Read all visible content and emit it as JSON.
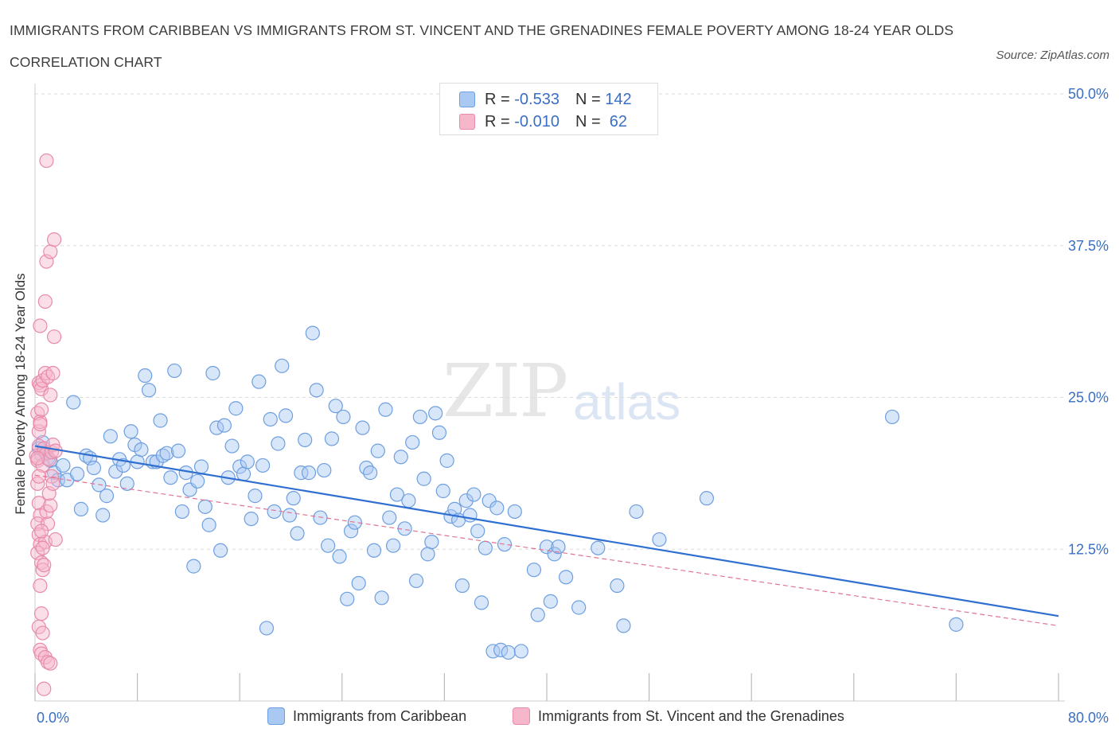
{
  "title": "IMMIGRANTS FROM CARIBBEAN VS IMMIGRANTS FROM ST. VINCENT AND THE GRENADINES FEMALE POVERTY AMONG 18-24 YEAR OLDS CORRELATION CHART",
  "source": "Source: ZipAtlas.com",
  "watermark": {
    "zip": "ZIP",
    "atlas": "atlas"
  },
  "colors": {
    "blue_fill": "#a9c8f2",
    "blue_stroke": "#6e9fe0",
    "blue_line": "#2f6fd0",
    "pink_fill": "#f6b7cb",
    "pink_stroke": "#e88aaa",
    "pink_line": "#e07494",
    "tick_label": "#3a6fc4",
    "grid": "#dddddd"
  },
  "legend": {
    "rows": [
      {
        "r_label": "R =",
        "r_value": "-0.533",
        "n_label": "N =",
        "n_value": "142"
      },
      {
        "r_label": "R =",
        "r_value": "-0.010",
        "n_label": "N =",
        "n_value": " 62"
      }
    ]
  },
  "chart_data": {
    "type": "scatter",
    "title": "IMMIGRANTS FROM CARIBBEAN VS IMMIGRANTS FROM ST. VINCENT AND THE GRENADINES FEMALE POVERTY AMONG 18-24 YEAR OLDS CORRELATION CHART",
    "xlabel": "",
    "ylabel": "Female Poverty Among 18-24 Year Olds",
    "xlim": [
      0,
      80
    ],
    "ylim": [
      0,
      50
    ],
    "x_tick_labels": [
      "0.0%",
      "80.0%"
    ],
    "y_ticks": [
      12.5,
      25.0,
      37.5,
      50.0
    ],
    "y_tick_labels": [
      "12.5%",
      "25.0%",
      "37.5%",
      "50.0%"
    ],
    "grid": true,
    "legend_position": "top-center",
    "series": [
      {
        "name": "Immigrants from Caribbean",
        "color": "#6e9fe0",
        "trend": {
          "x": [
            0,
            80
          ],
          "y": [
            21.0,
            7.0
          ]
        },
        "points": [
          [
            0.3,
            20.8
          ],
          [
            0.5,
            20.3
          ],
          [
            0.6,
            21.3
          ],
          [
            0.8,
            20.5
          ],
          [
            1.0,
            20.0
          ],
          [
            1.2,
            19.8
          ],
          [
            1.5,
            18.8
          ],
          [
            1.8,
            18.2
          ],
          [
            2.2,
            19.4
          ],
          [
            2.5,
            18.2
          ],
          [
            3.0,
            24.6
          ],
          [
            3.3,
            18.7
          ],
          [
            3.6,
            15.8
          ],
          [
            4.0,
            20.2
          ],
          [
            4.3,
            20.0
          ],
          [
            4.6,
            19.2
          ],
          [
            5.0,
            17.8
          ],
          [
            5.3,
            15.3
          ],
          [
            5.6,
            16.9
          ],
          [
            5.9,
            21.8
          ],
          [
            6.3,
            18.9
          ],
          [
            6.6,
            19.9
          ],
          [
            6.9,
            19.4
          ],
          [
            7.2,
            17.9
          ],
          [
            7.5,
            22.2
          ],
          [
            7.8,
            21.1
          ],
          [
            8.0,
            19.7
          ],
          [
            8.3,
            20.7
          ],
          [
            8.6,
            26.8
          ],
          [
            8.9,
            25.6
          ],
          [
            9.2,
            19.7
          ],
          [
            9.5,
            19.7
          ],
          [
            9.8,
            23.1
          ],
          [
            10.0,
            20.2
          ],
          [
            10.3,
            20.4
          ],
          [
            10.6,
            18.4
          ],
          [
            10.9,
            27.2
          ],
          [
            11.2,
            20.6
          ],
          [
            11.5,
            15.6
          ],
          [
            11.8,
            18.8
          ],
          [
            12.1,
            17.4
          ],
          [
            12.4,
            11.1
          ],
          [
            12.7,
            18.1
          ],
          [
            13.0,
            19.3
          ],
          [
            13.3,
            16.0
          ],
          [
            13.6,
            14.5
          ],
          [
            13.9,
            27.0
          ],
          [
            14.2,
            22.5
          ],
          [
            14.5,
            12.4
          ],
          [
            14.8,
            22.7
          ],
          [
            15.1,
            18.4
          ],
          [
            15.4,
            21.0
          ],
          [
            15.7,
            24.1
          ],
          [
            16.0,
            19.3
          ],
          [
            16.3,
            18.7
          ],
          [
            16.6,
            19.7
          ],
          [
            16.9,
            15.0
          ],
          [
            17.2,
            16.9
          ],
          [
            17.5,
            26.3
          ],
          [
            17.8,
            19.4
          ],
          [
            18.1,
            6.0
          ],
          [
            18.4,
            23.2
          ],
          [
            18.7,
            15.6
          ],
          [
            19.0,
            21.2
          ],
          [
            19.3,
            27.6
          ],
          [
            19.6,
            23.5
          ],
          [
            19.9,
            15.3
          ],
          [
            20.2,
            16.7
          ],
          [
            20.5,
            13.8
          ],
          [
            20.8,
            18.8
          ],
          [
            21.1,
            21.5
          ],
          [
            21.4,
            18.8
          ],
          [
            21.7,
            30.3
          ],
          [
            22.0,
            25.6
          ],
          [
            22.3,
            15.1
          ],
          [
            22.6,
            19.0
          ],
          [
            22.9,
            12.8
          ],
          [
            23.2,
            21.6
          ],
          [
            23.5,
            24.3
          ],
          [
            23.8,
            11.9
          ],
          [
            24.1,
            23.4
          ],
          [
            24.4,
            8.4
          ],
          [
            24.7,
            14.0
          ],
          [
            25.0,
            14.7
          ],
          [
            25.3,
            9.7
          ],
          [
            25.6,
            22.5
          ],
          [
            25.9,
            19.2
          ],
          [
            26.2,
            18.8
          ],
          [
            26.5,
            12.4
          ],
          [
            26.8,
            20.6
          ],
          [
            27.1,
            8.5
          ],
          [
            27.4,
            24.0
          ],
          [
            27.7,
            15.1
          ],
          [
            28.0,
            12.8
          ],
          [
            28.3,
            17.0
          ],
          [
            28.6,
            20.1
          ],
          [
            28.9,
            14.2
          ],
          [
            29.2,
            16.5
          ],
          [
            29.5,
            21.3
          ],
          [
            29.8,
            9.9
          ],
          [
            30.1,
            23.4
          ],
          [
            30.4,
            18.3
          ],
          [
            30.7,
            12.1
          ],
          [
            31.0,
            13.1
          ],
          [
            31.3,
            23.7
          ],
          [
            31.6,
            22.1
          ],
          [
            31.9,
            17.3
          ],
          [
            32.2,
            19.8
          ],
          [
            32.5,
            15.2
          ],
          [
            32.8,
            15.8
          ],
          [
            33.1,
            14.9
          ],
          [
            33.4,
            9.5
          ],
          [
            33.7,
            16.5
          ],
          [
            34.0,
            15.3
          ],
          [
            34.3,
            17.0
          ],
          [
            34.6,
            14.0
          ],
          [
            34.9,
            8.1
          ],
          [
            35.2,
            12.6
          ],
          [
            35.5,
            16.5
          ],
          [
            35.8,
            4.1
          ],
          [
            36.1,
            15.9
          ],
          [
            36.4,
            4.2
          ],
          [
            36.7,
            12.9
          ],
          [
            37.0,
            4.0
          ],
          [
            37.5,
            15.6
          ],
          [
            38.0,
            4.1
          ],
          [
            39.0,
            10.8
          ],
          [
            39.3,
            7.1
          ],
          [
            40.0,
            12.7
          ],
          [
            40.3,
            8.2
          ],
          [
            40.6,
            12.1
          ],
          [
            40.9,
            12.7
          ],
          [
            41.5,
            10.2
          ],
          [
            42.5,
            7.7
          ],
          [
            44.0,
            12.6
          ],
          [
            45.5,
            9.5
          ],
          [
            46.0,
            6.2
          ],
          [
            47.0,
            15.6
          ],
          [
            48.8,
            13.3
          ],
          [
            52.5,
            16.7
          ],
          [
            67.0,
            23.4
          ],
          [
            72.0,
            6.3
          ]
        ]
      },
      {
        "name": "Immigrants from St. Vincent and the Grenadines",
        "color": "#e88aaa",
        "trend": {
          "x": [
            0,
            80
          ],
          "y": [
            18.6,
            6.2
          ]
        },
        "points": [
          [
            0.1,
            20.2
          ],
          [
            0.2,
            19.8
          ],
          [
            0.3,
            21.0
          ],
          [
            0.2,
            23.7
          ],
          [
            0.3,
            22.2
          ],
          [
            0.4,
            23.0
          ],
          [
            0.2,
            17.9
          ],
          [
            0.3,
            16.3
          ],
          [
            0.4,
            15.3
          ],
          [
            0.2,
            14.6
          ],
          [
            0.3,
            13.7
          ],
          [
            0.4,
            12.9
          ],
          [
            0.2,
            12.2
          ],
          [
            0.5,
            11.4
          ],
          [
            0.6,
            10.8
          ],
          [
            0.4,
            9.5
          ],
          [
            0.5,
            7.2
          ],
          [
            0.3,
            6.1
          ],
          [
            0.6,
            5.6
          ],
          [
            0.4,
            4.2
          ],
          [
            0.5,
            3.9
          ],
          [
            0.8,
            3.6
          ],
          [
            1.0,
            3.2
          ],
          [
            1.2,
            3.1
          ],
          [
            0.7,
            1.0
          ],
          [
            0.8,
            13.1
          ],
          [
            1.0,
            14.6
          ],
          [
            0.9,
            15.6
          ],
          [
            1.2,
            16.1
          ],
          [
            1.3,
            18.5
          ],
          [
            0.6,
            19.4
          ],
          [
            0.7,
            20.8
          ],
          [
            0.9,
            20.4
          ],
          [
            1.1,
            19.9
          ],
          [
            1.3,
            20.5
          ],
          [
            1.4,
            21.1
          ],
          [
            0.3,
            26.2
          ],
          [
            0.4,
            26.0
          ],
          [
            0.5,
            25.7
          ],
          [
            0.6,
            26.4
          ],
          [
            0.8,
            27.0
          ],
          [
            1.0,
            26.7
          ],
          [
            1.2,
            25.2
          ],
          [
            1.4,
            27.0
          ],
          [
            0.4,
            30.9
          ],
          [
            0.8,
            32.9
          ],
          [
            1.5,
            30.0
          ],
          [
            0.9,
            36.2
          ],
          [
            1.2,
            37.0
          ],
          [
            1.5,
            38.0
          ],
          [
            0.9,
            44.5
          ],
          [
            1.6,
            13.3
          ],
          [
            0.7,
            11.2
          ],
          [
            0.6,
            12.6
          ],
          [
            0.5,
            14.0
          ],
          [
            0.3,
            18.5
          ],
          [
            0.2,
            20.0
          ],
          [
            0.4,
            22.8
          ],
          [
            0.5,
            24.0
          ],
          [
            1.1,
            17.1
          ],
          [
            1.4,
            17.9
          ],
          [
            1.6,
            20.6
          ]
        ]
      }
    ]
  },
  "axes": {
    "x_min_label": "0.0%",
    "x_max_label": "80.0%",
    "ylabel": "Female Poverty Among 18-24 Year Olds"
  },
  "bottom_legend": {
    "series1": "Immigrants from Caribbean",
    "series2": "Immigrants from St. Vincent and the Grenadines"
  }
}
